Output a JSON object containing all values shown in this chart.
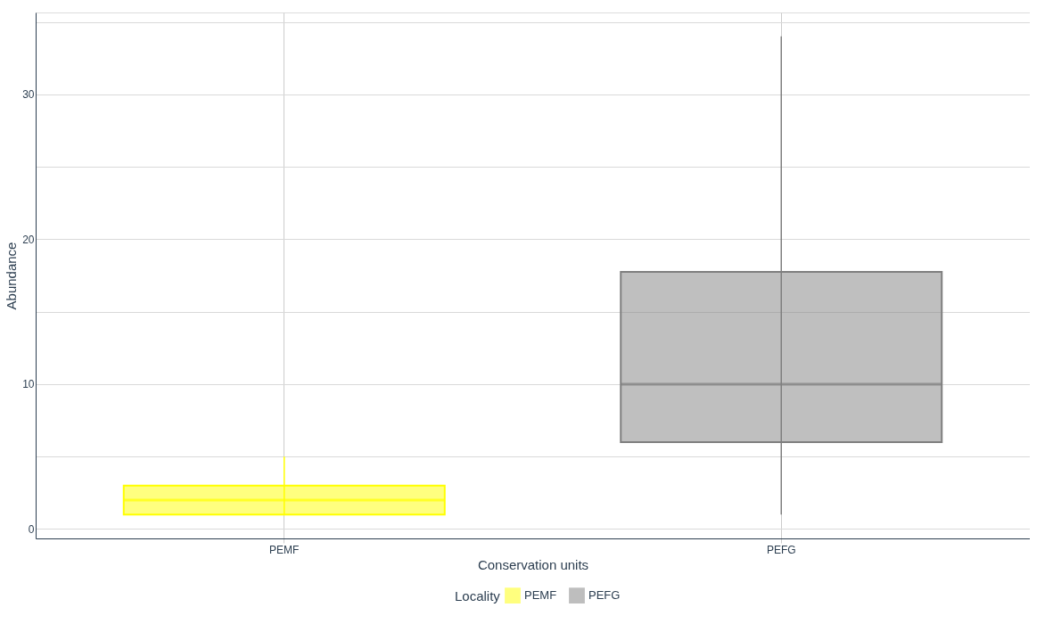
{
  "chart_data": {
    "type": "box",
    "xlabel": "Conservation units",
    "ylabel": "Abundance",
    "legend_title": "Locality",
    "categories": [
      "PEMF",
      "PEFG"
    ],
    "series": [
      {
        "name": "PEMF",
        "color": "#ffff00",
        "boxes": [
          {
            "low": 1,
            "q1": 1,
            "median": 2,
            "q3": 3,
            "high": 5
          },
          null
        ]
      },
      {
        "name": "PEFG",
        "color": "#7f7f7f",
        "boxes": [
          null,
          {
            "low": 1,
            "q1": 6,
            "median": 10,
            "q3": 17.75,
            "high": 34
          }
        ]
      }
    ],
    "ylim": [
      -0.65,
      35.65
    ],
    "yticks": [
      0,
      {
        "value": 5,
        "label": null
      },
      10,
      {
        "value": 15,
        "label": null
      },
      20,
      {
        "value": 25,
        "label": null
      },
      30,
      {
        "value": 35,
        "label": null
      }
    ],
    "grid": true,
    "legend": "bottom"
  }
}
